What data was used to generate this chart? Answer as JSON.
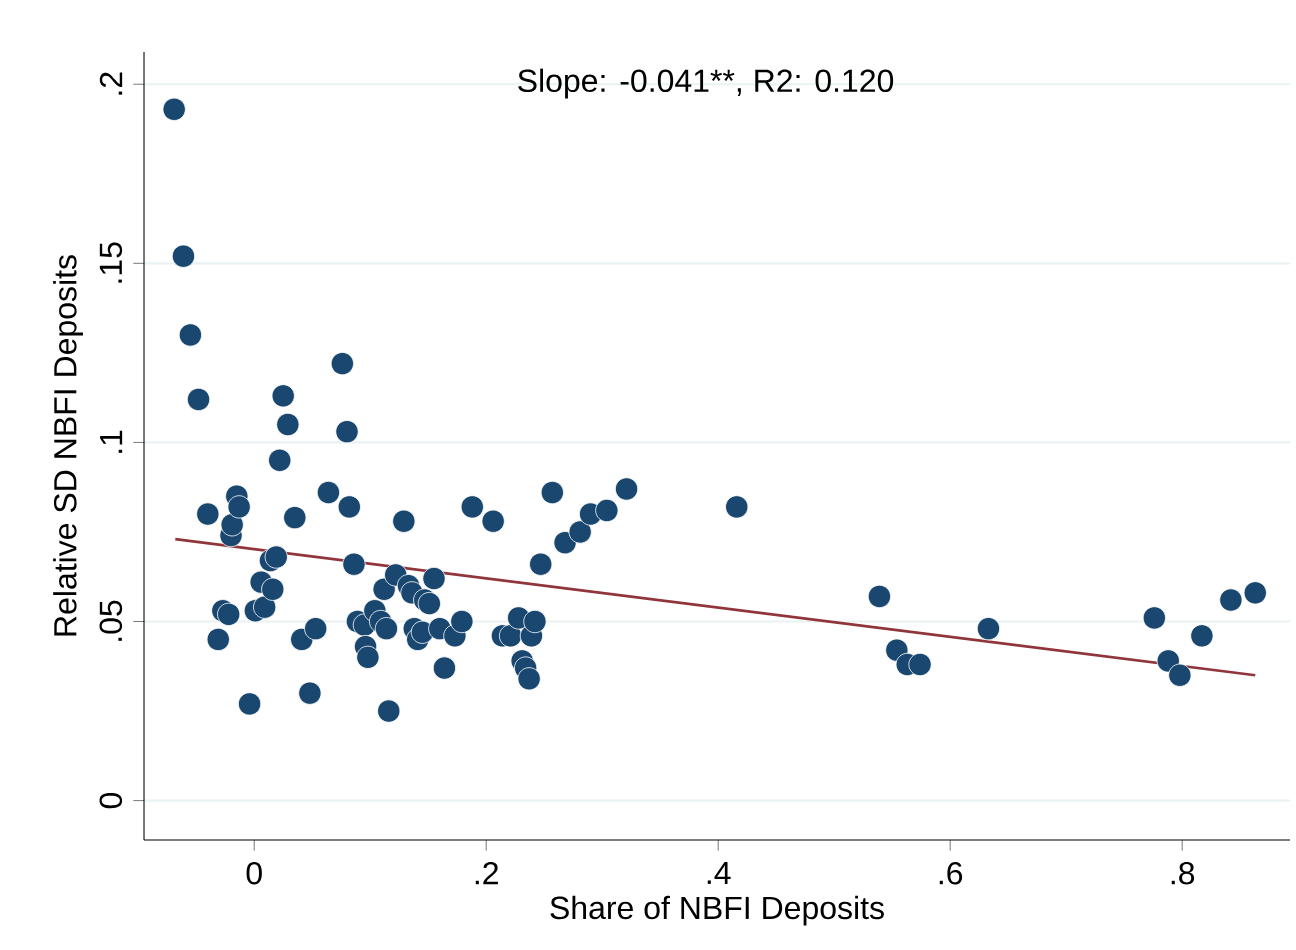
{
  "chart_data": {
    "type": "scatter",
    "xlabel": "Share of NBFI Deposits",
    "ylabel": "Relative SD NBFI Deposits",
    "annotations": [
      "Slope:   -0.041**, R2:    0.120"
    ],
    "xlim": [
      -0.095,
      0.893
    ],
    "ylim": [
      -0.011,
      0.209
    ],
    "xticks": [
      0,
      {
        "value": 0.2,
        "label": ".2"
      },
      {
        "value": 0.4,
        "label": ".4"
      },
      {
        "value": 0.6,
        "label": ".6"
      },
      {
        "value": 0.8,
        "label": ".8"
      }
    ],
    "yticks": [
      0,
      {
        "value": 0.05,
        "label": ".05"
      },
      {
        "value": 0.1,
        "label": ".1"
      },
      {
        "value": 0.15,
        "label": ".15"
      },
      {
        "value": 0.2,
        "label": ".2"
      }
    ],
    "grid": "y",
    "marker": "circle",
    "series": [
      {
        "color": "#1a476f",
        "x": [
          -0.069,
          -0.061,
          -0.055,
          -0.048,
          -0.04,
          -0.031,
          -0.027,
          -0.022,
          -0.02,
          -0.019,
          -0.015,
          -0.013,
          -0.004,
          0.001,
          0.006,
          0.009,
          0.014,
          0.019,
          0.016,
          0.022,
          0.025,
          0.029,
          0.035,
          0.041,
          0.048,
          0.053,
          0.064,
          0.076,
          0.08,
          0.082,
          0.086,
          0.089,
          0.095,
          0.096,
          0.098,
          0.104,
          0.109,
          0.112,
          0.114,
          0.116,
          0.122,
          0.129,
          0.133,
          0.136,
          0.138,
          0.141,
          0.145,
          0.147,
          0.151,
          0.155,
          0.16,
          0.164,
          0.173,
          0.179,
          0.188,
          0.206,
          0.214,
          0.221,
          0.228,
          0.231,
          0.234,
          0.237,
          0.239,
          0.242,
          0.247,
          0.257,
          0.268,
          0.281,
          0.29,
          0.304,
          0.321,
          0.416,
          0.539,
          0.554,
          0.563,
          0.574,
          0.633,
          0.776,
          0.788,
          0.798,
          0.817,
          0.842,
          0.863
        ],
        "values": [
          0.193,
          0.152,
          0.13,
          0.112,
          0.08,
          0.045,
          0.053,
          0.052,
          0.074,
          0.077,
          0.085,
          0.082,
          0.027,
          0.053,
          0.061,
          0.054,
          0.067,
          0.068,
          0.059,
          0.095,
          0.113,
          0.105,
          0.079,
          0.045,
          0.03,
          0.048,
          0.086,
          0.122,
          0.103,
          0.082,
          0.066,
          0.05,
          0.049,
          0.043,
          0.04,
          0.053,
          0.05,
          0.059,
          0.048,
          0.025,
          0.063,
          0.078,
          0.06,
          0.058,
          0.048,
          0.045,
          0.047,
          0.056,
          0.055,
          0.062,
          0.048,
          0.037,
          0.046,
          0.05,
          0.082,
          0.078,
          0.046,
          0.046,
          0.051,
          0.039,
          0.037,
          0.034,
          0.046,
          0.05,
          0.066,
          0.086,
          0.072,
          0.075,
          0.08,
          0.081,
          0.087,
          0.082,
          0.057,
          0.042,
          0.038,
          0.038,
          0.048,
          0.051,
          0.039,
          0.035,
          0.046,
          0.056,
          0.058
        ]
      },
      {
        "type": "line",
        "color": "#90353b",
        "marker": "none",
        "line_style": "solid",
        "x": [
          -0.068,
          0.863
        ],
        "values": [
          0.073,
          0.035
        ]
      }
    ]
  }
}
